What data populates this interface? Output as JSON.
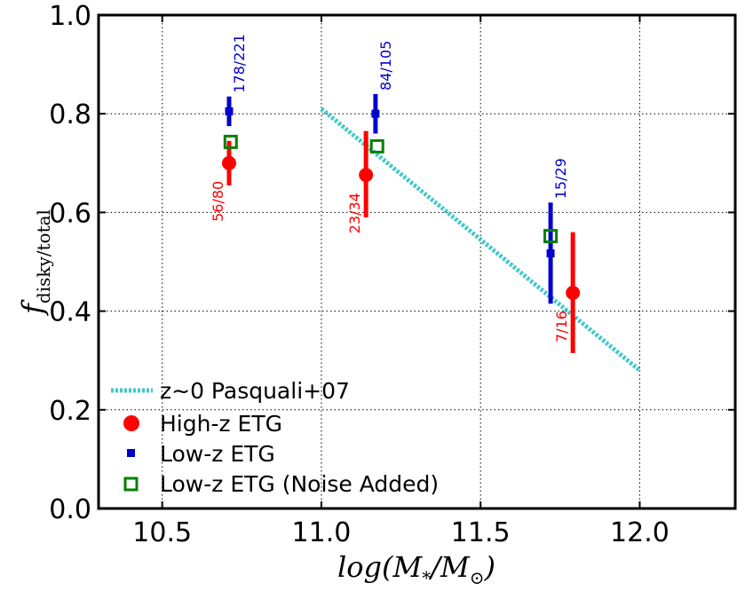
{
  "chart_data": {
    "type": "scatter",
    "xlabel": "log(M*/M⊙)",
    "ylabel": "f disky/total",
    "xlim": [
      10.3,
      12.3
    ],
    "ylim": [
      0.0,
      1.0
    ],
    "xticks": [
      "10.5",
      "11.0",
      "11.5",
      "12.0"
    ],
    "yticks": [
      "0.0",
      "0.2",
      "0.4",
      "0.6",
      "0.8",
      "1.0"
    ],
    "grid": true,
    "legend_position": "lower-left",
    "colors": {
      "high_z": "#ff0000",
      "low_z": "#0000cc",
      "noise": "#008000",
      "pasquali": "#40c8c8"
    },
    "series": [
      {
        "name": "High-z ETG",
        "legend_label": "High-z ETG",
        "marker": "circle",
        "points": [
          {
            "x": 10.71,
            "y": 0.7,
            "err_low": 0.655,
            "err_high": 0.745,
            "label": "56/80"
          },
          {
            "x": 11.14,
            "y": 0.676,
            "err_low": 0.59,
            "err_high": 0.765,
            "label": "23/34"
          },
          {
            "x": 11.79,
            "y": 0.437,
            "err_low": 0.315,
            "err_high": 0.56,
            "label": "7/16"
          }
        ]
      },
      {
        "name": "Low-z ETG",
        "legend_label": "Low-z ETG",
        "marker": "square",
        "points": [
          {
            "x": 10.71,
            "y": 0.805,
            "err_low": 0.775,
            "err_high": 0.835,
            "label": "178/221"
          },
          {
            "x": 11.17,
            "y": 0.8,
            "err_low": 0.76,
            "err_high": 0.84,
            "label": "84/105"
          },
          {
            "x": 11.72,
            "y": 0.517,
            "err_low": 0.415,
            "err_high": 0.62,
            "label": "15/29"
          }
        ]
      },
      {
        "name": "Low-z ETG (Noise Added)",
        "legend_label": "Low-z ETG (Noise Added)",
        "marker": "open-square",
        "points": [
          {
            "x": 10.715,
            "y": 0.743
          },
          {
            "x": 11.175,
            "y": 0.734
          },
          {
            "x": 11.72,
            "y": 0.552
          }
        ]
      }
    ],
    "reference_line": {
      "name": "z~0 Pasquali+07",
      "legend_label": "z∼0 Pasquali+07",
      "x": [
        11.0,
        12.0
      ],
      "y": [
        0.81,
        0.28
      ]
    }
  }
}
